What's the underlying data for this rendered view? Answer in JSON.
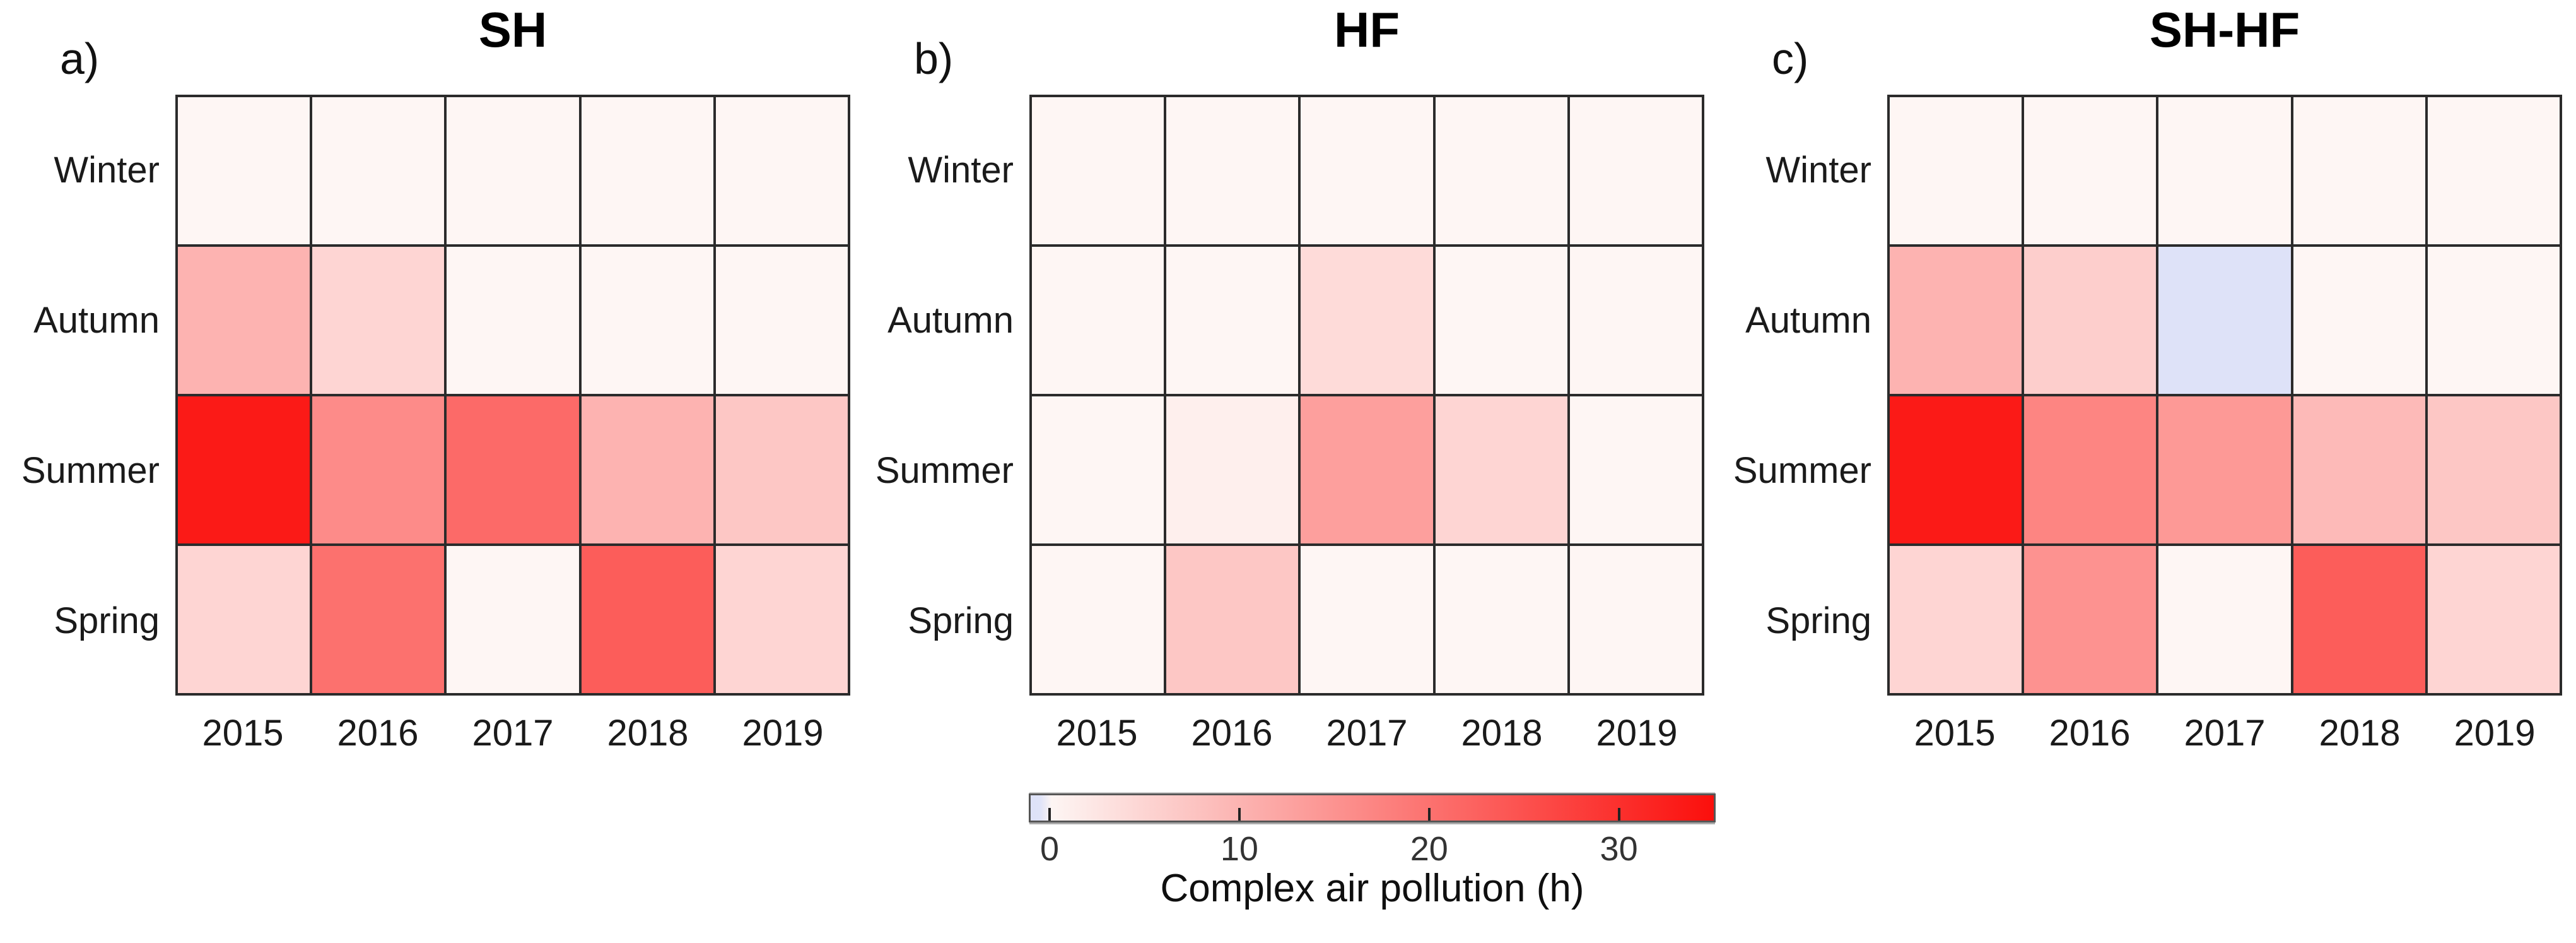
{
  "chart_data": {
    "type": "heatmap",
    "layout_hint": "three heatmap panels side by side, shared horizontal colorbar legend centered at bottom",
    "grid": "on (dark cell borders)",
    "panels": [
      {
        "letter": "a)",
        "title": "SH",
        "rows": [
          "Winter",
          "Autumn",
          "Summer",
          "Spring"
        ],
        "cols": [
          "2015",
          "2016",
          "2017",
          "2018",
          "2019"
        ],
        "values": [
          [
            0,
            0,
            0,
            0,
            0
          ],
          [
            10,
            5,
            0,
            0,
            0
          ],
          [
            33,
            16,
            21,
            10,
            7
          ],
          [
            5,
            20,
            0,
            23,
            5
          ]
        ]
      },
      {
        "letter": "b)",
        "title": "HF",
        "rows": [
          "Winter",
          "Autumn",
          "Summer",
          "Spring"
        ],
        "cols": [
          "2015",
          "2016",
          "2017",
          "2018",
          "2019"
        ],
        "values": [
          [
            0,
            0,
            0,
            0,
            0
          ],
          [
            0,
            0,
            4,
            0,
            0
          ],
          [
            0,
            1,
            13,
            5,
            0
          ],
          [
            0,
            7,
            0,
            0,
            0
          ]
        ]
      },
      {
        "letter": "c)",
        "title": "SH-HF",
        "rows": [
          "Winter",
          "Autumn",
          "Summer",
          "Spring"
        ],
        "cols": [
          "2015",
          "2016",
          "2017",
          "2018",
          "2019"
        ],
        "values": [
          [
            0,
            0,
            0,
            0,
            0
          ],
          [
            10,
            6,
            -1,
            0,
            0
          ],
          [
            33,
            17,
            14,
            9,
            7
          ],
          [
            5,
            15,
            0,
            23,
            5
          ]
        ]
      }
    ],
    "colorbar": {
      "label": "Complex air pollution (h)",
      "ticks": [
        0,
        10,
        20,
        30
      ],
      "vmin": -1,
      "vmax": 35,
      "color_negative": "#dee2f8",
      "color_zero": "#fef6f4",
      "color_max": "#fb0f0c",
      "orientation": "horizontal"
    },
    "line_color": "#2b2b2b"
  }
}
